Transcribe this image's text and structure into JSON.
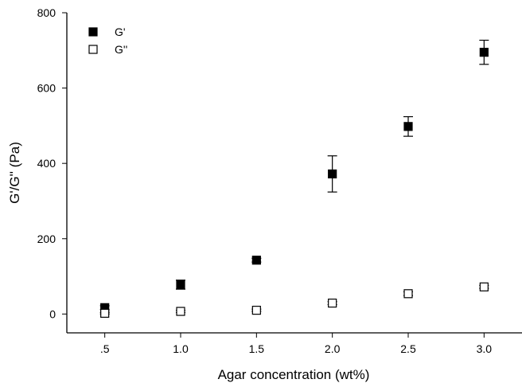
{
  "chart_data": {
    "type": "scatter",
    "title": "",
    "xlabel": "Agar concentration (wt%)",
    "ylabel": "G'/G'' (Pa)",
    "xlim": [
      0.25,
      3.25
    ],
    "ylim": [
      -50,
      800
    ],
    "x_ticks": [
      0.5,
      1.0,
      1.5,
      2.0,
      2.5,
      3.0
    ],
    "x_tick_labels": [
      ".5",
      "1.0",
      "1.5",
      "2.0",
      "2.5",
      "3.0"
    ],
    "y_ticks": [
      0,
      200,
      400,
      600,
      800
    ],
    "y_tick_labels": [
      "0",
      "200",
      "400",
      "600",
      "800"
    ],
    "grid": false,
    "legend_position": "top-left",
    "series": [
      {
        "name": "G'",
        "marker": "filled-square",
        "color": "#000000",
        "x": [
          0.5,
          1.0,
          1.5,
          2.0,
          2.5,
          3.0
        ],
        "y": [
          17,
          78,
          143,
          372,
          498,
          695
        ],
        "err": [
          5,
          12,
          5,
          48,
          26,
          32
        ]
      },
      {
        "name": "G''",
        "marker": "open-square",
        "color": "#000000",
        "x": [
          0.5,
          1.0,
          1.5,
          2.0,
          2.5,
          3.0
        ],
        "y": [
          2,
          7,
          10,
          29,
          54,
          72
        ],
        "err": [
          2,
          3,
          3,
          4,
          5,
          4
        ]
      }
    ]
  }
}
